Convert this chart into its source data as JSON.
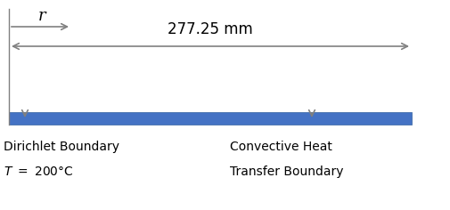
{
  "fig_width": 5.06,
  "fig_height": 2.36,
  "dpi": 100,
  "bar_color": "#4472C4",
  "bar_edge_color": "#3060A0",
  "arrow_color": "#808080",
  "text_color": "#000000",
  "bg_color": "#ffffff",
  "dimension_text": "277.25 mm",
  "dimension_text_fontsize": 12,
  "r_label": "r",
  "r_label_fontsize": 13,
  "label_fontsize": 10,
  "left_label_line1": "Dirichlet Boundary",
  "left_label_line2": "T = 200°C",
  "right_label_line1": "Convective Heat",
  "right_label_line2": "Transfer Boundary"
}
